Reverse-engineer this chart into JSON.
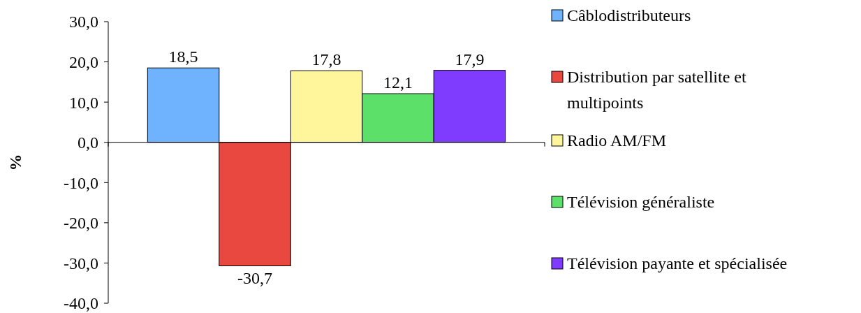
{
  "chart_data": {
    "type": "bar",
    "ylabel": "%",
    "categories": [
      null
    ],
    "series": [
      {
        "name": "Câblodistributeurs",
        "color": "#6fb3ff",
        "values": [
          18.5
        ],
        "value_labels": [
          "18,5"
        ]
      },
      {
        "name": "Distribution par satellite et multipoints",
        "color": "#e84840",
        "values": [
          -30.7
        ],
        "value_labels": [
          "-30,7"
        ]
      },
      {
        "name": "Radio AM/FM",
        "color": "#fff59a",
        "values": [
          17.8
        ],
        "value_labels": [
          "17,8"
        ]
      },
      {
        "name": "Télévision généraliste",
        "color": "#5de06a",
        "values": [
          12.1
        ],
        "value_labels": [
          "12,1"
        ]
      },
      {
        "name": "Télévision payante et spécialisée",
        "color": "#7f3cff",
        "values": [
          17.9
        ],
        "value_labels": [
          "17,9"
        ]
      }
    ],
    "ylim": [
      -40,
      30
    ],
    "yticks": [
      {
        "value": -40,
        "label": "-40,0"
      },
      {
        "value": -30,
        "label": "-30,0"
      },
      {
        "value": -20,
        "label": "-20,0"
      },
      {
        "value": -10,
        "label": "-10,0"
      },
      {
        "value": 0,
        "label": "0,0"
      },
      {
        "value": 10,
        "label": "10,0"
      },
      {
        "value": 20,
        "label": "20,0"
      },
      {
        "value": 30,
        "label": "30,0"
      }
    ],
    "legend": "right"
  }
}
